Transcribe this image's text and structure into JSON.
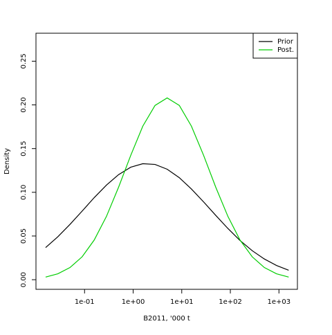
{
  "chart_data": {
    "type": "line",
    "x_label": "B2011, '000 t",
    "y_label": "Density",
    "x": [
      0.0158,
      0.0282,
      0.0501,
      0.0891,
      0.158,
      0.282,
      0.501,
      0.891,
      1.58,
      2.82,
      5.01,
      8.91,
      15.8,
      28.2,
      50.1,
      89.1,
      158,
      282,
      501,
      891,
      1585
    ],
    "series": [
      {
        "name": "Prior",
        "color": "#000000",
        "values": [
          0.0368,
          0.0491,
          0.0633,
          0.0785,
          0.0939,
          0.1082,
          0.1202,
          0.1287,
          0.1327,
          0.1319,
          0.1264,
          0.1167,
          0.1038,
          0.089,
          0.0736,
          0.0586,
          0.0449,
          0.0332,
          0.0237,
          0.0163,
          0.0108
        ]
      },
      {
        "name": "Post.",
        "color": "#00cd00",
        "values": [
          0.003,
          0.0068,
          0.0139,
          0.0262,
          0.0454,
          0.0724,
          0.1058,
          0.1422,
          0.1757,
          0.1994,
          0.208,
          0.1994,
          0.1757,
          0.1422,
          0.1058,
          0.0724,
          0.0454,
          0.0262,
          0.0139,
          0.0068,
          0.003
        ]
      }
    ],
    "x_log": true,
    "xlim": [
      0.01,
      2400
    ],
    "ylim": [
      -0.011,
      0.282
    ],
    "xticks": [
      {
        "value": 0.1,
        "label": "1e-01"
      },
      {
        "value": 1,
        "label": "1e+00"
      },
      {
        "value": 10,
        "label": "1e+01"
      },
      {
        "value": 100,
        "label": "1e+02"
      },
      {
        "value": 1000,
        "label": "1e+03"
      }
    ],
    "yticks": [
      {
        "value": 0,
        "label": "0.00"
      },
      {
        "value": 0.05,
        "label": "0.05"
      },
      {
        "value": 0.1,
        "label": "0.10"
      },
      {
        "value": 0.15,
        "label": "0.15"
      },
      {
        "value": 0.2,
        "label": "0.20"
      },
      {
        "value": 0.25,
        "label": "0.25"
      }
    ],
    "legend": "top-right"
  }
}
